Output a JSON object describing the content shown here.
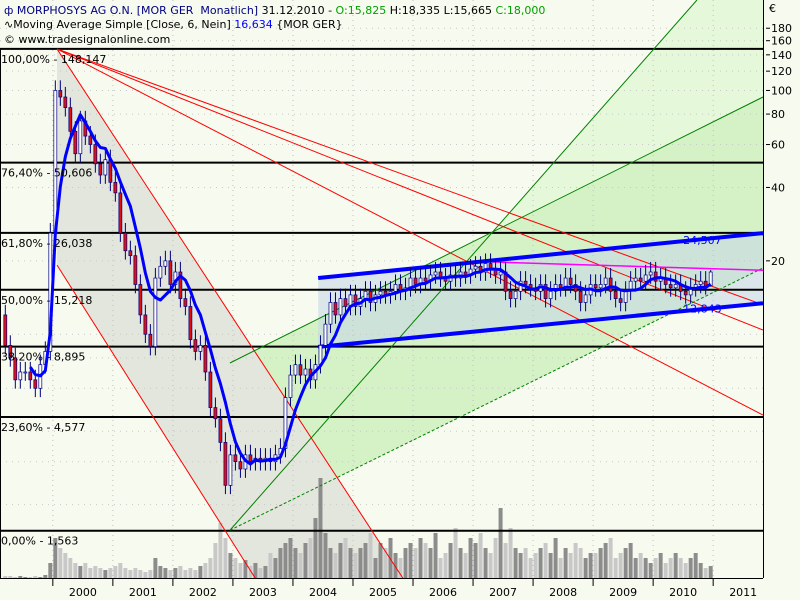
{
  "header": {
    "instrument": "MORPHOSYS AG O.N. [MOR GER  Monatlich]",
    "date": " 31.12.2010 - ",
    "open": "O:15,825",
    "high_low": " H:18,335 L:15,665 ",
    "close": "C:18,000",
    "indicator": "Moving Average Simple [Close, 6, Nein] ",
    "indicator_value": "16,634",
    "indicator_symbol": " {MOR GER}",
    "copyright": "© www.tradesignalonline.com"
  },
  "chart_data": {
    "type": "candlestick",
    "currency_label": "€",
    "y_scale": "log",
    "ylim": [
      1,
      235
    ],
    "xlim": [
      1999.12,
      2011.83
    ],
    "grid": true,
    "y_ticks": [
      180,
      160,
      140,
      120,
      100,
      80,
      60,
      40,
      20
    ],
    "x_ticks": [
      "2000",
      "2001",
      "2002",
      "2003",
      "2004",
      "2005",
      "2006",
      "2007",
      "2008",
      "2009",
      "2010",
      "2011"
    ],
    "start_month": "1999-03",
    "closes": [
      9,
      8,
      6.5,
      7,
      7,
      6.5,
      6,
      7.5,
      8.5,
      26,
      100,
      94,
      85,
      68,
      55,
      75,
      65,
      60,
      50,
      45,
      52,
      42,
      38,
      26,
      22,
      21,
      16,
      12,
      10,
      8.9,
      17,
      19,
      20,
      16,
      18,
      14,
      13,
      9.5,
      8.5,
      9,
      7,
      5,
      4.5,
      3.6,
      2.4,
      3.2,
      3.0,
      2.8,
      3.2,
      3.0,
      3.1,
      3.0,
      3.1,
      3.0,
      3.2,
      3.4,
      5.5,
      6.8,
      7.5,
      6.8,
      7.2,
      6.5,
      7.5,
      9,
      11,
      13.5,
      12,
      14,
      13,
      14.5,
      13,
      14,
      15,
      13.5,
      14.5,
      15,
      14.5,
      15,
      16,
      15,
      15.5,
      17,
      16,
      17,
      16.5,
      17.5,
      18,
      17,
      16.5,
      17.5,
      17,
      18,
      17.5,
      18.5,
      19,
      18,
      19.5,
      18.5,
      17.5,
      18,
      15,
      14,
      15,
      16.5,
      16,
      15.5,
      15,
      16,
      14,
      15,
      16,
      15.5,
      17,
      16,
      15,
      13.5,
      14.5,
      16,
      15.5,
      16,
      17,
      15,
      14,
      13.5,
      15,
      16.5,
      17,
      16.5,
      17.5,
      18,
      16.5,
      17,
      16,
      15.5,
      16,
      15,
      14.5,
      15.5,
      16,
      16.5,
      15.8,
      18
    ],
    "first_open": 12,
    "last_candle": {
      "open": 15.825,
      "high": 18.335,
      "low": 15.665,
      "close": 18.0
    },
    "volume": [
      2,
      2,
      1,
      2,
      1,
      1,
      2,
      1,
      3,
      15,
      40,
      30,
      25,
      20,
      15,
      12,
      15,
      10,
      12,
      10,
      8,
      10,
      12,
      15,
      10,
      8,
      10,
      8,
      6,
      8,
      20,
      12,
      10,
      8,
      10,
      12,
      8,
      10,
      8,
      12,
      15,
      20,
      35,
      55,
      40,
      25,
      20,
      15,
      18,
      12,
      15,
      10,
      12,
      25,
      20,
      30,
      35,
      40,
      30,
      25,
      35,
      40,
      60,
      100,
      45,
      30,
      25,
      35,
      40,
      30,
      25,
      30,
      35,
      45,
      20,
      35,
      30,
      40,
      25,
      20,
      30,
      35,
      30,
      40,
      35,
      30,
      45,
      20,
      25,
      35,
      50,
      30,
      25,
      40,
      35,
      45,
      30,
      25,
      40,
      70,
      35,
      50,
      30,
      25,
      30,
      20,
      25,
      30,
      35,
      25,
      40,
      20,
      30,
      25,
      35,
      30,
      20,
      25,
      25,
      30,
      35,
      40,
      20,
      25,
      30,
      35,
      20,
      25,
      20,
      15,
      20,
      25,
      15,
      20,
      25,
      20,
      15,
      20,
      25,
      15,
      10,
      12
    ],
    "moving_average_period": 6,
    "fibonacci_levels": [
      {
        "label": "100,00% - 148,147",
        "price": 148.147
      },
      {
        "label": "76,40% - 50,606",
        "price": 50.606
      },
      {
        "label": "61,80% - 26,038",
        "price": 26.038
      },
      {
        "label": "50,00% - 15,218",
        "price": 15.218
      },
      {
        "label": "38,20% - 8,895",
        "price": 8.895
      },
      {
        "label": "23,60% - 4,577",
        "price": 4.577
      },
      {
        "label": "0,00% - 1,563",
        "price": 1.563
      }
    ],
    "annotations": {
      "red_channel_fill": [
        [
          2000.07,
          148
        ],
        [
          2005.83,
          1
        ],
        [
          2003.37,
          1
        ],
        [
          2000.07,
          19.2
        ]
      ],
      "red_lines": [
        [
          [
            2000.07,
            148
          ],
          [
            2011.83,
            13.2
          ]
        ],
        [
          [
            2000.07,
            148
          ],
          [
            2011.83,
            10.4
          ]
        ],
        [
          [
            2000.07,
            148
          ],
          [
            2011.83,
            4.66
          ]
        ],
        [
          [
            2000.07,
            148
          ],
          [
            2005.83,
            1
          ]
        ],
        [
          [
            2000.07,
            19.2
          ],
          [
            2003.37,
            1
          ]
        ]
      ],
      "green_lines": [
        [
          [
            2002.95,
            1.57
          ],
          [
            2010.73,
            235
          ]
        ],
        [
          [
            2002.95,
            1.57
          ],
          [
            2011.83,
            18.7
          ]
        ],
        [
          [
            2002.95,
            7.62
          ],
          [
            2011.83,
            94
          ]
        ]
      ],
      "blue_channel": [
        [
          [
            2004.42,
            17.0
          ],
          [
            2011.83,
            26.0
          ]
        ],
        [
          [
            2004.42,
            8.87
          ],
          [
            2011.83,
            13.4
          ]
        ]
      ],
      "magenta_line": [
        [
          2007.28,
          19.8
        ],
        [
          2011.83,
          18.3
        ]
      ],
      "blue_labels": [
        {
          "text": "24,507",
          "t": 2010.5,
          "price": 23.4
        },
        {
          "text": "12,843",
          "t": 2010.5,
          "price": 12.3
        }
      ]
    },
    "colors": {
      "background": "#f7faef",
      "up": "#ffffff",
      "down": "#e01010",
      "wick": "#000080",
      "ma": "#0000ff",
      "volume": "#8c8c8c",
      "volume_down": "#c8c8c8"
    }
  }
}
